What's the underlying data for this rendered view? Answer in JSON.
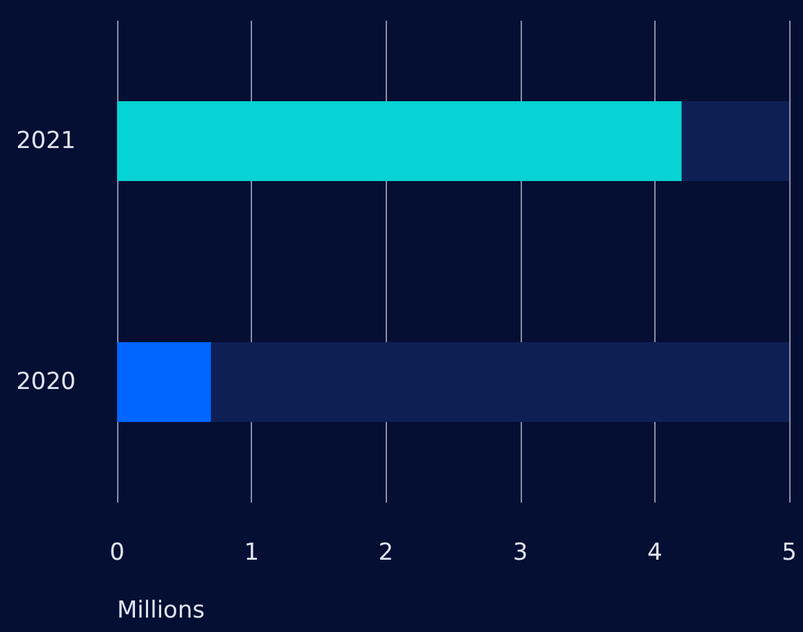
{
  "chart_data": {
    "type": "bar",
    "orientation": "horizontal",
    "stacked": true,
    "xlabel": "Millions",
    "categories": [
      "2021",
      "2020"
    ],
    "series": [
      {
        "colors": [
          "#06d3d3",
          "#0066ff"
        ],
        "values": [
          4.2,
          0.7
        ]
      },
      {
        "color": "#0e1f55",
        "values": [
          0.8,
          4.3
        ]
      }
    ],
    "xlim": [
      0,
      5
    ],
    "xticks": [
      0,
      1,
      2,
      3,
      4,
      5
    ],
    "grid": "x"
  }
}
